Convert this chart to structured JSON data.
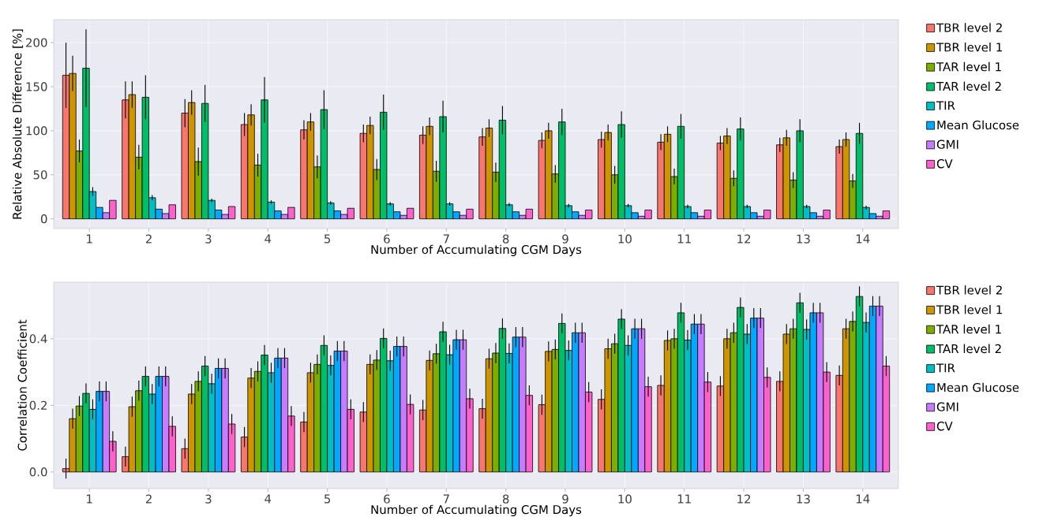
{
  "chart_data": [
    {
      "type": "bar",
      "categories": [
        "1",
        "2",
        "3",
        "4",
        "5",
        "6",
        "7",
        "8",
        "9",
        "10",
        "11",
        "12",
        "13",
        "14"
      ],
      "xlabel": "Number of Accumulating CGM Days",
      "ylabel": "Relative Absolute Difference [%]",
      "ylim": [
        -11,
        226
      ],
      "yticks": [
        0,
        50,
        100,
        150,
        200
      ],
      "grid": true,
      "legend": "right",
      "series": [
        {
          "name": "TBR level 2",
          "color": "#f8766d",
          "values": [
            163,
            135,
            120,
            107,
            101,
            97,
            95,
            93,
            89,
            90,
            87,
            86,
            84,
            82
          ],
          "errors": [
            37,
            21,
            16,
            13,
            11,
            10,
            10,
            10,
            9,
            9,
            9,
            8,
            8,
            8
          ]
        },
        {
          "name": "TBR level 1",
          "color": "#cd9600",
          "values": [
            165,
            141,
            132,
            118,
            110,
            106,
            105,
            103,
            100,
            98,
            96,
            94,
            92,
            90
          ],
          "errors": [
            20,
            15,
            14,
            12,
            10,
            10,
            10,
            10,
            9,
            9,
            9,
            9,
            9,
            8
          ]
        },
        {
          "name": "TAR level 1",
          "color": "#7cae00",
          "values": [
            77,
            70,
            65,
            61,
            59,
            56,
            54,
            53,
            51,
            50,
            48,
            46,
            44,
            43
          ],
          "errors": [
            13,
            14,
            16,
            13,
            13,
            12,
            12,
            11,
            10,
            10,
            9,
            9,
            9,
            8
          ]
        },
        {
          "name": "TAR level 2",
          "color": "#00be67",
          "values": [
            171,
            138,
            131,
            135,
            124,
            121,
            116,
            112,
            110,
            107,
            105,
            102,
            100,
            97
          ],
          "errors": [
            44,
            25,
            21,
            26,
            22,
            20,
            18,
            16,
            15,
            15,
            14,
            13,
            13,
            12
          ]
        },
        {
          "name": "TIR",
          "color": "#00bfc4",
          "values": [
            31,
            24,
            21,
            19,
            18,
            17,
            17,
            16,
            15,
            15,
            14,
            14,
            14,
            13
          ],
          "errors": [
            5,
            3,
            2,
            2,
            2,
            2,
            2,
            2,
            2,
            2,
            2,
            2,
            2,
            2
          ]
        },
        {
          "name": "Mean Glucose",
          "color": "#00a9ff",
          "values": [
            13,
            11,
            10,
            9,
            9,
            8,
            8,
            8,
            8,
            7,
            7,
            7,
            7,
            6
          ]
        },
        {
          "name": "GMI",
          "color": "#c77cff",
          "values": [
            7,
            6,
            5,
            5,
            5,
            4,
            4,
            4,
            4,
            3,
            3,
            3,
            3,
            3
          ]
        },
        {
          "name": "CV",
          "color": "#ff61cc",
          "values": [
            21,
            16,
            14,
            13,
            12,
            12,
            11,
            11,
            10,
            10,
            10,
            10,
            10,
            9
          ]
        }
      ]
    },
    {
      "type": "bar",
      "categories": [
        "1",
        "2",
        "3",
        "4",
        "5",
        "6",
        "7",
        "8",
        "9",
        "10",
        "11",
        "12",
        "13",
        "14"
      ],
      "xlabel": "Number of Accumulating CGM Days",
      "ylabel": "Correlation Coefficient",
      "ylim": [
        -0.05,
        0.57
      ],
      "yticks": [
        {
          "value": 0,
          "label": "0.0"
        },
        0.2,
        0.4
      ],
      "grid": true,
      "legend": "right",
      "series": [
        {
          "name": "TBR level 2",
          "color": "#f8766d",
          "values": [
            0.01,
            0.046,
            0.07,
            0.105,
            0.15,
            0.18,
            0.186,
            0.19,
            0.202,
            0.218,
            0.26,
            0.258,
            0.272,
            0.29
          ],
          "errors": [
            0.03,
            0.03,
            0.03,
            0.03,
            0.03,
            0.03,
            0.03,
            0.03,
            0.03,
            0.03,
            0.03,
            0.03,
            0.03,
            0.03
          ]
        },
        {
          "name": "TBR level 1",
          "color": "#cd9600",
          "values": [
            0.16,
            0.196,
            0.234,
            0.282,
            0.298,
            0.323,
            0.335,
            0.34,
            0.362,
            0.37,
            0.395,
            0.4,
            0.414,
            0.43
          ],
          "errors": [
            0.03,
            0.03,
            0.03,
            0.03,
            0.03,
            0.03,
            0.03,
            0.03,
            0.03,
            0.03,
            0.03,
            0.03,
            0.03,
            0.03
          ]
        },
        {
          "name": "TAR level 1",
          "color": "#7cae00",
          "values": [
            0.198,
            0.244,
            0.272,
            0.302,
            0.323,
            0.336,
            0.355,
            0.357,
            0.368,
            0.385,
            0.4,
            0.418,
            0.43,
            0.452
          ],
          "errors": [
            0.03,
            0.03,
            0.03,
            0.03,
            0.03,
            0.03,
            0.03,
            0.03,
            0.03,
            0.03,
            0.03,
            0.03,
            0.03,
            0.03
          ]
        },
        {
          "name": "TAR level 2",
          "color": "#00be67",
          "values": [
            0.236,
            0.287,
            0.318,
            0.351,
            0.38,
            0.401,
            0.421,
            0.431,
            0.446,
            0.459,
            0.478,
            0.494,
            0.508,
            0.527
          ],
          "errors": [
            0.03,
            0.03,
            0.03,
            0.03,
            0.03,
            0.03,
            0.03,
            0.03,
            0.03,
            0.03,
            0.03,
            0.03,
            0.03,
            0.03
          ]
        },
        {
          "name": "TIR",
          "color": "#00bfc4",
          "values": [
            0.188,
            0.234,
            0.265,
            0.298,
            0.32,
            0.334,
            0.352,
            0.356,
            0.365,
            0.38,
            0.396,
            0.414,
            0.428,
            0.449
          ],
          "errors": [
            0.03,
            0.03,
            0.03,
            0.03,
            0.03,
            0.03,
            0.03,
            0.03,
            0.03,
            0.03,
            0.03,
            0.03,
            0.03,
            0.03
          ]
        },
        {
          "name": "Mean Glucose",
          "color": "#00a9ff",
          "values": [
            0.242,
            0.287,
            0.311,
            0.342,
            0.363,
            0.377,
            0.397,
            0.405,
            0.418,
            0.43,
            0.444,
            0.462,
            0.478,
            0.498
          ],
          "errors": [
            0.03,
            0.03,
            0.03,
            0.03,
            0.03,
            0.03,
            0.03,
            0.03,
            0.03,
            0.03,
            0.03,
            0.03,
            0.03,
            0.03
          ]
        },
        {
          "name": "GMI",
          "color": "#c77cff",
          "values": [
            0.242,
            0.287,
            0.311,
            0.342,
            0.363,
            0.377,
            0.397,
            0.405,
            0.418,
            0.43,
            0.444,
            0.462,
            0.478,
            0.498
          ],
          "errors": [
            0.03,
            0.03,
            0.03,
            0.03,
            0.03,
            0.03,
            0.03,
            0.03,
            0.03,
            0.03,
            0.03,
            0.03,
            0.03,
            0.03
          ]
        },
        {
          "name": "CV",
          "color": "#ff61cc",
          "values": [
            0.092,
            0.137,
            0.144,
            0.168,
            0.188,
            0.203,
            0.22,
            0.23,
            0.24,
            0.256,
            0.27,
            0.284,
            0.3,
            0.318
          ],
          "errors": [
            0.03,
            0.03,
            0.03,
            0.03,
            0.03,
            0.03,
            0.03,
            0.03,
            0.03,
            0.03,
            0.03,
            0.03,
            0.03,
            0.03
          ]
        }
      ]
    }
  ]
}
